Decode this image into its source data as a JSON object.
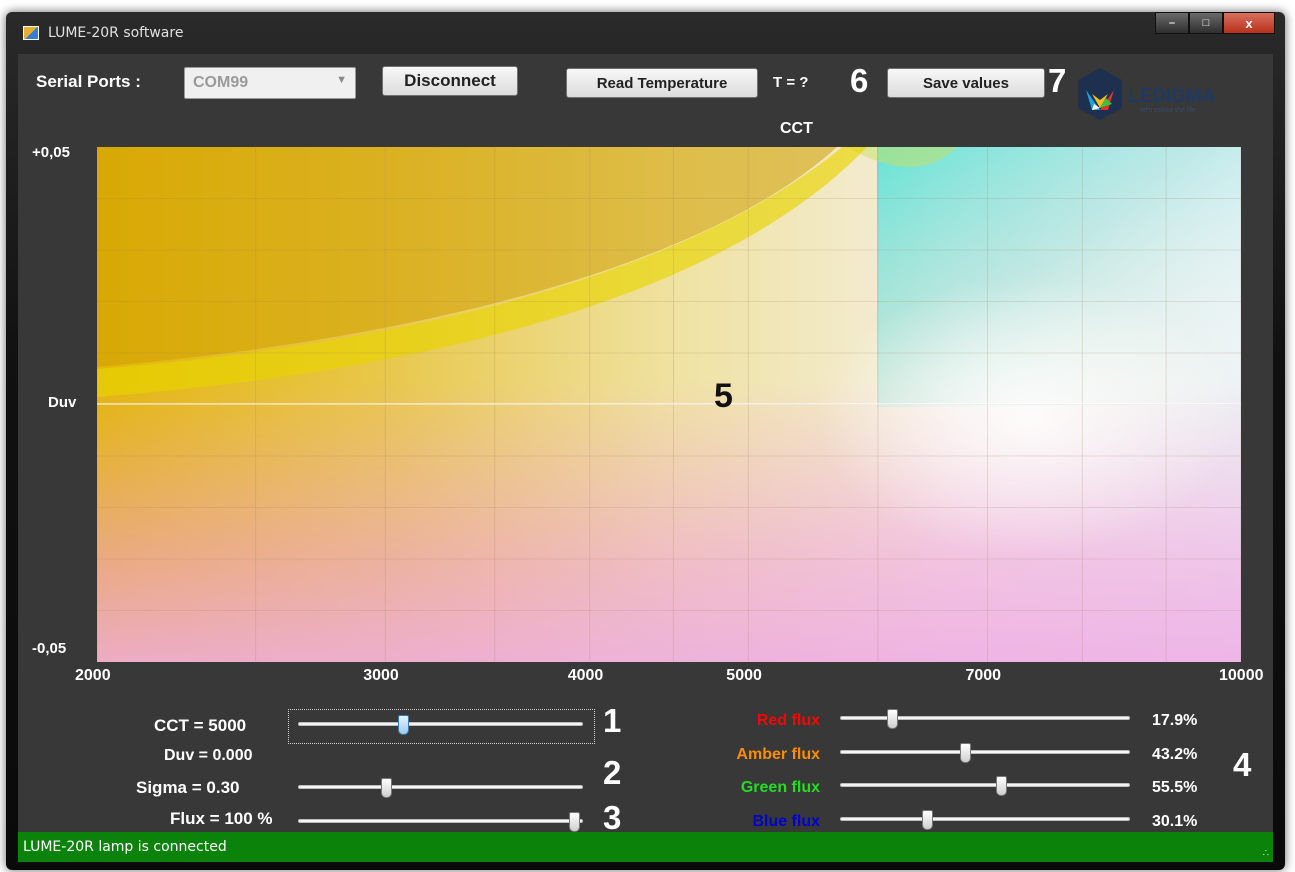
{
  "window": {
    "title": "LUME-20R software"
  },
  "toolbar": {
    "serial_label": "Serial Ports :",
    "port_value": "COM99",
    "disconnect_label": "Disconnect",
    "read_temp_label": "Read Temperature",
    "temperature_text": "T = ?",
    "save_label": "Save values"
  },
  "logo": {
    "text": "LEDIGMA",
    "tagline": "let's colour the life"
  },
  "plot": {
    "x_axis_label": "CCT",
    "y_axis_label": "Duv",
    "y_ticks": [
      "+0,05",
      "-0,05"
    ],
    "x_ticks": [
      "2000",
      "3000",
      "4000",
      "5000",
      "7000",
      "10000"
    ],
    "x_tick_values": [
      2000,
      3000,
      4000,
      5000,
      7000,
      10000
    ],
    "x_gridlines": [
      2000,
      2500,
      3000,
      3500,
      4000,
      4500,
      5000,
      6000,
      7000,
      8000,
      9000,
      10000
    ],
    "x_log_scale": true,
    "y_range": [
      -0.05,
      0.05
    ],
    "grid": true
  },
  "controls": {
    "cct_label": "CCT = 5000",
    "duv_label": "Duv = 0.000",
    "sigma_label": "Sigma = 0.30",
    "flux_label": "Flux = 100 %",
    "cct_value": 0.37,
    "sigma_value": 0.31,
    "flux_value": 0.97
  },
  "channels": [
    {
      "label": "Red flux",
      "value": "17.9%",
      "fraction": 0.179,
      "color": "#ff0000"
    },
    {
      "label": "Amber flux",
      "value": "43.2%",
      "fraction": 0.432,
      "color": "#ff8c00"
    },
    {
      "label": "Green flux",
      "value": "55.5%",
      "fraction": 0.555,
      "color": "#22dd22"
    },
    {
      "label": "Blue flux",
      "value": "30.1%",
      "fraction": 0.301,
      "color": "#0000cc"
    }
  ],
  "markers": {
    "m1": "1",
    "m2": "2",
    "m3": "3",
    "m4": "4",
    "m5": "5",
    "m6": "6",
    "m7": "7"
  },
  "status": {
    "text": "LUME-20R lamp is connected"
  }
}
